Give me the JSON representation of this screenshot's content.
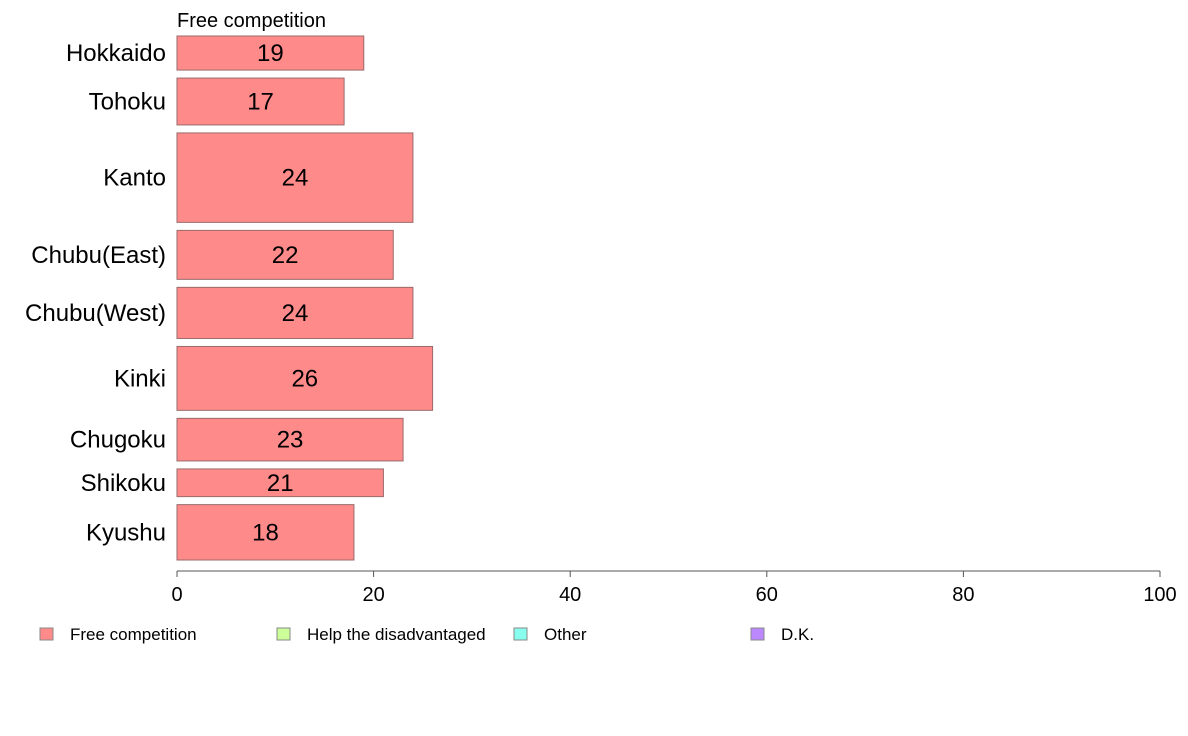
{
  "chart_data": {
    "type": "bar",
    "orientation": "horizontal",
    "panel_title": "Free competition",
    "categories": [
      "Hokkaido",
      "Tohoku",
      "Kanto",
      "Chubu(East)",
      "Chubu(West)",
      "Kinki",
      "Chugoku",
      "Shikoku",
      "Kyushu"
    ],
    "series": [
      {
        "name": "Free competition",
        "values": [
          19,
          17,
          24,
          22,
          24,
          26,
          23,
          21,
          18
        ],
        "color": "#ff8a8a"
      }
    ],
    "bar_thickness_relative": [
      0.8,
      1.1,
      2.1,
      1.15,
      1.2,
      1.5,
      1.0,
      0.65,
      1.3
    ],
    "value_labels": [
      "19",
      "17",
      "24",
      "22",
      "24",
      "26",
      "23",
      "21",
      "18"
    ],
    "xlim": [
      0,
      100
    ],
    "xticks": [
      0,
      20,
      40,
      60,
      80,
      100
    ],
    "xtick_labels": [
      "0",
      "20",
      "40",
      "60",
      "80",
      "100"
    ],
    "grid": false,
    "legend_position": "bottom",
    "legend": [
      {
        "label": "Free competition",
        "color": "#ff8a8a"
      },
      {
        "label": "Help the disadvantaged",
        "color": "#ccff99"
      },
      {
        "label": "Other",
        "color": "#88ffee"
      },
      {
        "label": "D.K.",
        "color": "#bb88ff"
      }
    ]
  }
}
